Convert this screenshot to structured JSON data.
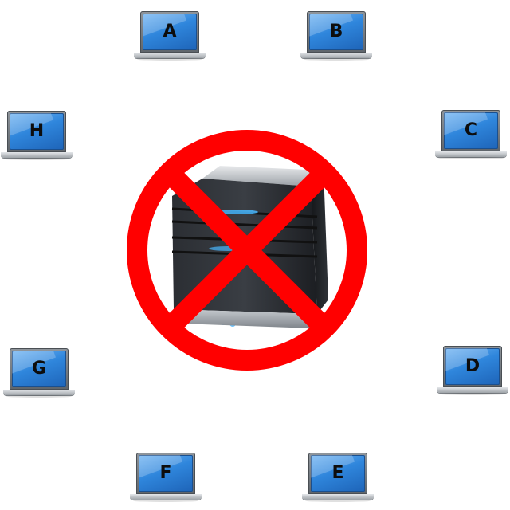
{
  "nodes": [
    {
      "id": "A",
      "label": "A"
    },
    {
      "id": "B",
      "label": "B"
    },
    {
      "id": "C",
      "label": "C"
    },
    {
      "id": "D",
      "label": "D"
    },
    {
      "id": "E",
      "label": "E"
    },
    {
      "id": "F",
      "label": "F"
    },
    {
      "id": "G",
      "label": "G"
    },
    {
      "id": "H",
      "label": "H"
    }
  ],
  "center": {
    "icon": "server-icon",
    "overlay": "prohibited-icon",
    "overlay_color": "#ff0000"
  },
  "colors": {
    "screen": "#2f86dc",
    "prohibited": "#ff0000",
    "server": "#2a2d31"
  }
}
